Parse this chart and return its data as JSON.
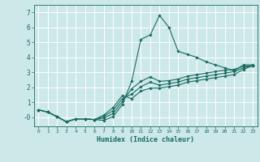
{
  "title": "",
  "xlabel": "Humidex (Indice chaleur)",
  "ylabel": "",
  "background_color": "#cce8e8",
  "grid_color": "#ffffff",
  "line_color": "#1a6b60",
  "xlim": [
    -0.5,
    23.5
  ],
  "ylim": [
    -0.6,
    7.5
  ],
  "yticks": [
    0,
    1,
    2,
    3,
    4,
    5,
    6,
    7
  ],
  "ytick_labels": [
    "-0",
    "1",
    "2",
    "3",
    "4",
    "5",
    "6",
    "7"
  ],
  "xticks": [
    0,
    1,
    2,
    3,
    4,
    5,
    6,
    7,
    8,
    9,
    10,
    11,
    12,
    13,
    14,
    15,
    16,
    17,
    18,
    19,
    20,
    21,
    22,
    23
  ],
  "lines": [
    {
      "x": [
        0,
        1,
        2,
        3,
        4,
        5,
        6,
        7,
        8,
        9,
        10,
        11,
        12,
        13,
        14,
        15,
        16,
        17,
        18,
        19,
        20,
        21,
        22,
        23
      ],
      "y": [
        0.5,
        0.35,
        0.05,
        -0.3,
        -0.1,
        -0.1,
        -0.15,
        -0.2,
        0.05,
        0.85,
        2.4,
        5.2,
        5.5,
        6.8,
        6.0,
        4.4,
        4.2,
        4.0,
        3.7,
        3.5,
        3.3,
        3.1,
        3.5,
        3.5
      ]
    },
    {
      "x": [
        0,
        1,
        2,
        3,
        4,
        5,
        6,
        7,
        8,
        9,
        10,
        11,
        12,
        13,
        14,
        15,
        16,
        17,
        18,
        19,
        20,
        21,
        22,
        23
      ],
      "y": [
        0.5,
        0.35,
        0.05,
        -0.3,
        -0.1,
        -0.1,
        -0.15,
        -0.05,
        0.25,
        1.05,
        1.9,
        2.4,
        2.7,
        2.4,
        2.45,
        2.55,
        2.75,
        2.85,
        2.95,
        3.05,
        3.15,
        3.2,
        3.4,
        3.45
      ]
    },
    {
      "x": [
        0,
        1,
        2,
        3,
        4,
        5,
        6,
        7,
        8,
        9,
        10,
        11,
        12,
        13,
        14,
        15,
        16,
        17,
        18,
        19,
        20,
        21,
        22,
        23
      ],
      "y": [
        0.5,
        0.35,
        0.05,
        -0.3,
        -0.1,
        -0.1,
        -0.15,
        0.05,
        0.45,
        1.25,
        1.55,
        2.05,
        2.35,
        2.15,
        2.25,
        2.35,
        2.55,
        2.65,
        2.75,
        2.85,
        2.95,
        3.05,
        3.3,
        3.45
      ]
    },
    {
      "x": [
        0,
        1,
        2,
        3,
        4,
        5,
        6,
        7,
        8,
        9,
        10,
        11,
        12,
        13,
        14,
        15,
        16,
        17,
        18,
        19,
        20,
        21,
        22,
        23
      ],
      "y": [
        0.5,
        0.35,
        0.05,
        -0.3,
        -0.1,
        -0.1,
        -0.15,
        0.15,
        0.65,
        1.45,
        1.25,
        1.75,
        1.95,
        1.95,
        2.05,
        2.15,
        2.35,
        2.45,
        2.55,
        2.65,
        2.75,
        2.85,
        3.2,
        3.45
      ]
    }
  ]
}
